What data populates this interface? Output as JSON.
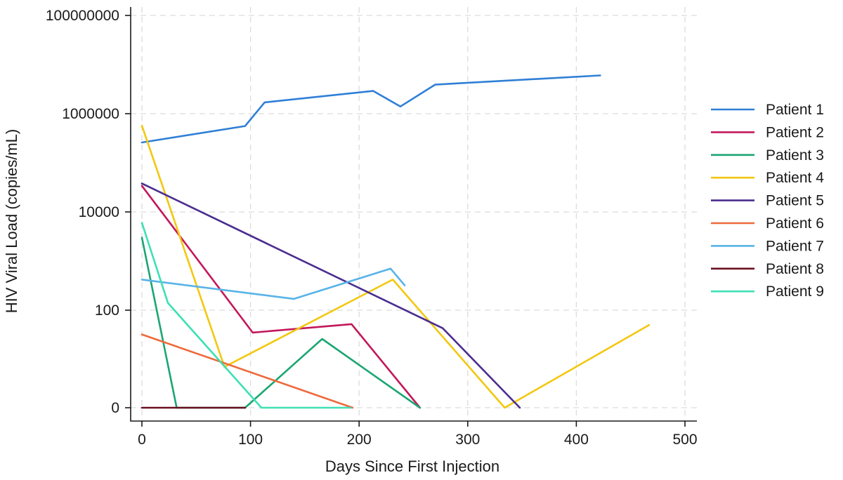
{
  "chart_data": {
    "type": "line",
    "title": "",
    "xlabel": "Days Since First Injection",
    "ylabel": "HIV Viral Load (copies/mL)",
    "xlim": [
      0,
      500
    ],
    "x_ticks": [
      0,
      100,
      200,
      300,
      400,
      500
    ],
    "y_scale": "log (0 shown at bottom)",
    "y_ticks": [
      "0",
      "100",
      "10000",
      "1000000",
      "100000000"
    ],
    "grid": true,
    "legend_position": "right",
    "series": [
      {
        "name": "Patient 1",
        "color": "#2f7fd6",
        "points": [
          [
            0,
            260000
          ],
          [
            95,
            560000
          ],
          [
            113,
            1700000
          ],
          [
            213,
            2900000
          ],
          [
            238,
            1400000
          ],
          [
            270,
            3900000
          ],
          [
            422,
            6000000
          ]
        ]
      },
      {
        "name": "Patient 2",
        "color": "#c2185b",
        "points": [
          [
            0,
            34000
          ],
          [
            102,
            35
          ],
          [
            193,
            52
          ],
          [
            256,
            0
          ]
        ]
      },
      {
        "name": "Patient 3",
        "color": "#1ba672",
        "points": [
          [
            0,
            3000
          ],
          [
            32,
            0
          ],
          [
            95,
            0
          ],
          [
            166,
            26
          ],
          [
            256,
            0
          ]
        ]
      },
      {
        "name": "Patient 4",
        "color": "#f2c811",
        "points": [
          [
            0,
            570000
          ],
          [
            76,
            7
          ],
          [
            231,
            420
          ],
          [
            334,
            0
          ],
          [
            467,
            50
          ]
        ]
      },
      {
        "name": "Patient 5",
        "color": "#4a2d8f",
        "points": [
          [
            0,
            38000
          ],
          [
            277,
            43
          ],
          [
            348,
            0
          ]
        ]
      },
      {
        "name": "Patient 6",
        "color": "#ee6a3b",
        "points": [
          [
            0,
            32
          ],
          [
            194,
            0
          ]
        ]
      },
      {
        "name": "Patient 7",
        "color": "#58b3e8",
        "points": [
          [
            0,
            420
          ],
          [
            140,
            170
          ],
          [
            229,
            700
          ],
          [
            242,
            320
          ]
        ]
      },
      {
        "name": "Patient 8",
        "color": "#6b1020",
        "points": [
          [
            0,
            0
          ],
          [
            95,
            0
          ]
        ]
      },
      {
        "name": "Patient 9",
        "color": "#3ee0b4",
        "points": [
          [
            0,
            6000
          ],
          [
            24,
            140
          ],
          [
            110,
            0
          ],
          [
            192,
            0
          ]
        ]
      }
    ]
  }
}
